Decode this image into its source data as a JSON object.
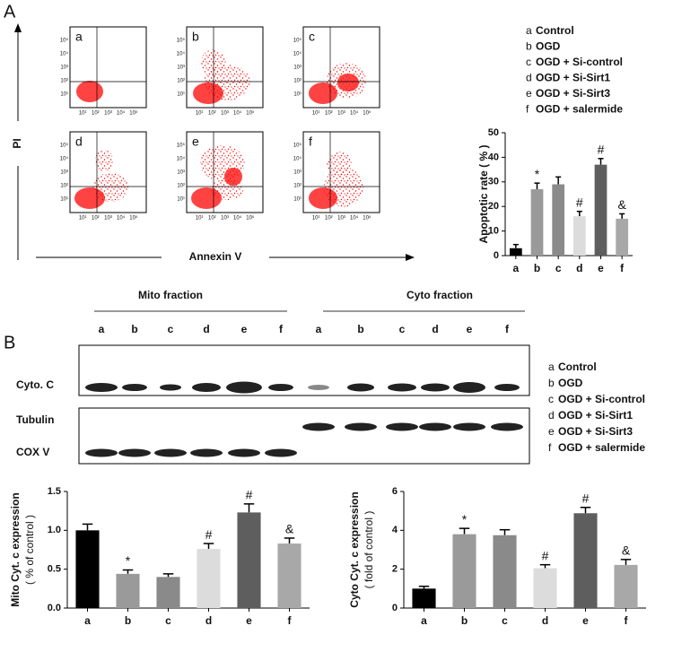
{
  "figure": {
    "panel_a": {
      "label": "A",
      "plots": [
        "a",
        "b",
        "c",
        "d",
        "e",
        "f"
      ],
      "flow_ticks": [
        "10⁰",
        "10¹",
        "10²",
        "10³",
        "10⁴",
        "10⁵"
      ],
      "y_axis": "PI",
      "x_axis": "Annexin V",
      "legend": [
        {
          "letter": "a",
          "label": "Control"
        },
        {
          "letter": "b",
          "label": "OGD"
        },
        {
          "letter": "c",
          "label": "OGD + Si-control"
        },
        {
          "letter": "d",
          "label": "OGD + Si-Sirt1"
        },
        {
          "letter": "e",
          "label": "OGD + Si-Sirt3"
        },
        {
          "letter": "f",
          "label": "OGD + salermide"
        }
      ]
    },
    "panel_b": {
      "label": "B",
      "fractions": [
        "Mito fraction",
        "Cyto fraction"
      ],
      "lanes": [
        "a",
        "b",
        "c",
        "d",
        "e",
        "f"
      ],
      "rows": [
        "Cyto. C",
        "Tubulin",
        "COX V"
      ],
      "legend": [
        {
          "letter": "a",
          "label": "Control"
        },
        {
          "letter": "b",
          "label": "OGD"
        },
        {
          "letter": "c",
          "label": "OGD + Si-control"
        },
        {
          "letter": "d",
          "label": "OGD + Si-Sirt1"
        },
        {
          "letter": "e",
          "label": "OGD + Si-Sirt3"
        },
        {
          "letter": "f",
          "label": "OGD + salermide"
        }
      ]
    }
  },
  "chart_data": [
    {
      "type": "bar",
      "ylabel": "Apoptotic rate ( % )",
      "categories": [
        "a",
        "b",
        "c",
        "d",
        "e",
        "f"
      ],
      "values": [
        3,
        27,
        29,
        16,
        37,
        15
      ],
      "errors": [
        1.5,
        2.5,
        3,
        2,
        2.5,
        2
      ],
      "annotations": [
        null,
        "*",
        null,
        "#",
        "#",
        "&"
      ],
      "colors": [
        "#000000",
        "#9a9a9a",
        "#8a8a8a",
        "#dcdcdc",
        "#5e5e5e",
        "#a8a8a8"
      ],
      "ylim": [
        0,
        50
      ],
      "yticks": [
        0,
        10,
        20,
        30,
        40,
        50
      ]
    },
    {
      "type": "bar",
      "ylabel": "Mito Cyt. c  expression",
      "ylabel2": "( % of control )",
      "categories": [
        "a",
        "b",
        "c",
        "d",
        "e",
        "f"
      ],
      "values": [
        1.0,
        0.44,
        0.4,
        0.76,
        1.23,
        0.83
      ],
      "errors": [
        0.08,
        0.05,
        0.04,
        0.07,
        0.11,
        0.07
      ],
      "annotations": [
        null,
        "*",
        null,
        "#",
        "#",
        "&"
      ],
      "colors": [
        "#000000",
        "#9a9a9a",
        "#8a8a8a",
        "#dcdcdc",
        "#5e5e5e",
        "#a8a8a8"
      ],
      "ylim": [
        0,
        1.5
      ],
      "yticks": [
        {
          "value": 0,
          "label": "0.0"
        },
        0.5,
        {
          "value": 1,
          "label": "1.0"
        },
        1.5
      ]
    },
    {
      "type": "bar",
      "ylabel": "Cyto Cyt. c  expression",
      "ylabel2": "( fold of control )",
      "categories": [
        "a",
        "b",
        "c",
        "d",
        "e",
        "f"
      ],
      "values": [
        1.0,
        3.8,
        3.75,
        2.05,
        4.88,
        2.22
      ],
      "errors": [
        0.12,
        0.3,
        0.28,
        0.18,
        0.3,
        0.28
      ],
      "annotations": [
        null,
        "*",
        null,
        "#",
        "#",
        "&"
      ],
      "colors": [
        "#000000",
        "#9a9a9a",
        "#8a8a8a",
        "#dcdcdc",
        "#5e5e5e",
        "#a8a8a8"
      ],
      "ylim": [
        0,
        6
      ],
      "yticks": [
        0,
        2,
        4,
        6
      ]
    }
  ]
}
